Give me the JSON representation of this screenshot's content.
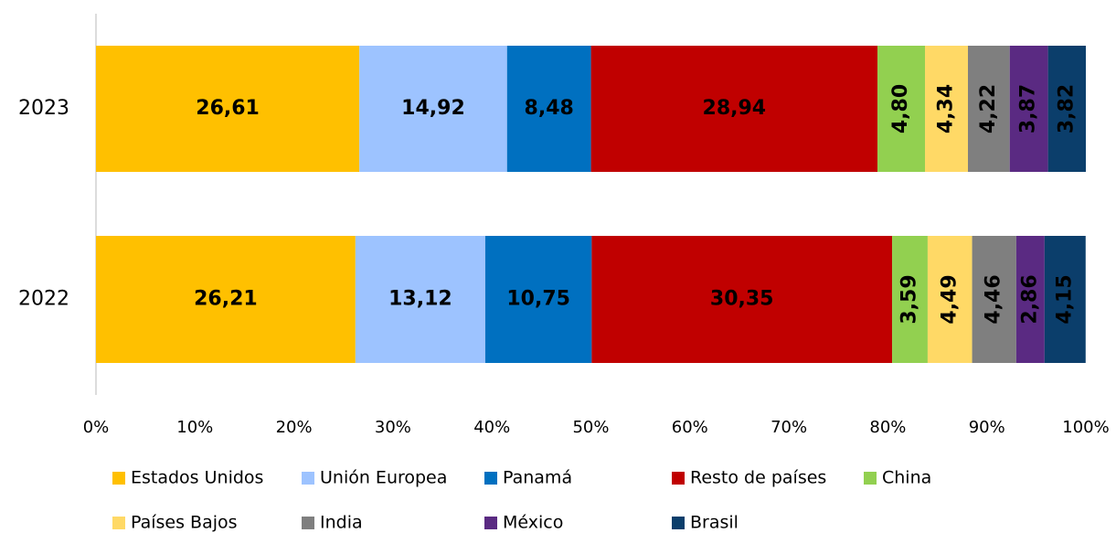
{
  "chart_data": {
    "type": "stacked_bar_horizontal",
    "categories": [
      "2023",
      "2022"
    ],
    "series": [
      {
        "name": "Estados Unidos",
        "color": "#FFC000",
        "values": [
          26.61,
          26.21
        ],
        "value_labels": [
          "26,61",
          "26,21"
        ]
      },
      {
        "name": "Unión Europea",
        "color": "#9DC3FF",
        "values": [
          14.92,
          13.12
        ],
        "value_labels": [
          "14,92",
          "13,12"
        ]
      },
      {
        "name": "Panamá",
        "color": "#0070C0",
        "values": [
          8.48,
          10.75
        ],
        "value_labels": [
          "8,48",
          "10,75"
        ]
      },
      {
        "name": "Resto de países",
        "color": "#C00000",
        "values": [
          28.94,
          30.35
        ],
        "value_labels": [
          "28,94",
          "30,35"
        ]
      },
      {
        "name": "China",
        "color": "#92D050",
        "values": [
          4.8,
          3.59
        ],
        "value_labels": [
          "4,80",
          "3,59"
        ]
      },
      {
        "name": "Países Bajos",
        "color": "#FFD966",
        "values": [
          4.34,
          4.49
        ],
        "value_labels": [
          "4,34",
          "4,49"
        ]
      },
      {
        "name": "India",
        "color": "#7F7F7F",
        "values": [
          4.22,
          4.46
        ],
        "value_labels": [
          "4,22",
          "4,46"
        ]
      },
      {
        "name": "México",
        "color": "#5A2A82",
        "values": [
          3.87,
          2.86
        ],
        "value_labels": [
          "3,87",
          "2,86"
        ]
      },
      {
        "name": "Brasil",
        "color": "#0B3E6B",
        "values": [
          3.82,
          4.15
        ],
        "value_labels": [
          "3,82",
          "4,15"
        ]
      }
    ],
    "xlim": [
      0,
      100
    ],
    "xticks": [
      {
        "value": 0,
        "label": "0%"
      },
      {
        "value": 10,
        "label": "10%"
      },
      {
        "value": 20,
        "label": "20%"
      },
      {
        "value": 30,
        "label": "30%"
      },
      {
        "value": 40,
        "label": "40%"
      },
      {
        "value": 50,
        "label": "50%"
      },
      {
        "value": 60,
        "label": "60%"
      },
      {
        "value": 70,
        "label": "70%"
      },
      {
        "value": 80,
        "label": "80%"
      },
      {
        "value": 90,
        "label": "90%"
      },
      {
        "value": 100,
        "label": "100%"
      }
    ],
    "legend": "bottom"
  }
}
